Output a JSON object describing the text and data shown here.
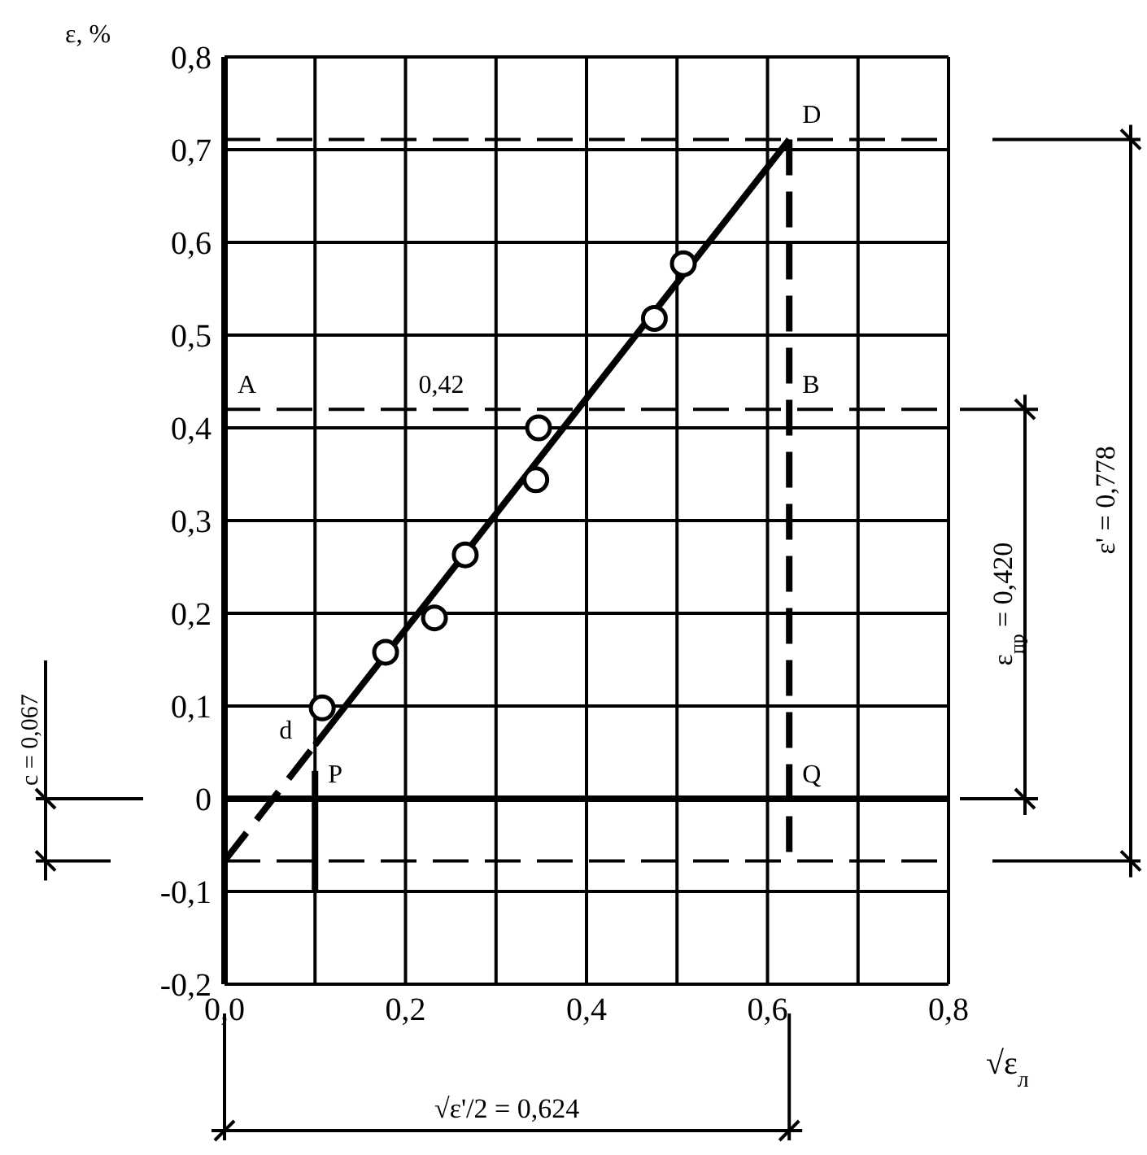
{
  "chart_data": {
    "type": "scatter",
    "xlabel": "√ε$_{л}$",
    "ylabel": "ε, %",
    "xlim": [
      0,
      0.8
    ],
    "ylim": [
      -0.2,
      0.8
    ],
    "xticks": [
      {
        "value": 0,
        "label": "0,0"
      },
      {
        "value": 0.1,
        "label": null
      },
      {
        "value": 0.2,
        "label": "0,2"
      },
      {
        "value": 0.3,
        "label": null
      },
      {
        "value": 0.4,
        "label": "0,4"
      },
      {
        "value": 0.5,
        "label": null
      },
      {
        "value": 0.6,
        "label": "0,6"
      },
      {
        "value": 0.7,
        "label": null
      },
      {
        "value": 0.8,
        "label": "0,8"
      }
    ],
    "yticks": [
      {
        "value": -0.2,
        "label": "-0,2"
      },
      {
        "value": -0.1,
        "label": "-0,1"
      },
      {
        "value": 0,
        "label": "0"
      },
      {
        "value": 0.1,
        "label": "0,1"
      },
      {
        "value": 0.2,
        "label": "0,2"
      },
      {
        "value": 0.3,
        "label": "0,3"
      },
      {
        "value": 0.4,
        "label": "0,4"
      },
      {
        "value": 0.5,
        "label": "0,5"
      },
      {
        "value": 0.6,
        "label": "0,6"
      },
      {
        "value": 0.7,
        "label": "0,7"
      },
      {
        "value": 0.8,
        "label": "0,8"
      }
    ],
    "grid": true,
    "series": [
      {
        "color": "#000000",
        "marker": "circle",
        "x": [
          0.108,
          0.178,
          0.232,
          0.266,
          0.344,
          0.347,
          0.475,
          0.507
        ],
        "values": [
          0.098,
          0.158,
          0.195,
          0.263,
          0.344,
          0.4,
          0.518,
          0.577
        ]
      },
      {
        "type": "line",
        "color": "#000000",
        "marker": "none",
        "line_style": "solid",
        "x": [
          0.1,
          0.624
        ],
        "values": [
          0.058,
          0.711
        ]
      },
      {
        "type": "line",
        "color": "#000000",
        "marker": "none",
        "line_style": "dashed",
        "x": [
          0,
          0.1
        ],
        "values": [
          -0.067,
          0.058
        ]
      },
      {
        "type": "line",
        "color": "#000000",
        "marker": "none",
        "line_style": "dashed",
        "x": [
          0.624,
          0.624
        ],
        "values": [
          0.711,
          -0.067
        ]
      },
      {
        "type": "line",
        "color": "#000000",
        "marker": "none",
        "line_style": "solid",
        "x": [
          0.1,
          0.1
        ],
        "values": [
          -0.1,
          0.03
        ]
      }
    ],
    "ref_lines": [
      {
        "axis": "y",
        "value": 0.711,
        "color": "#000000",
        "line_style": "dashed"
      },
      {
        "axis": "y",
        "value": 0.42,
        "color": "#000000",
        "line_style": "dashed"
      },
      {
        "axis": "y",
        "value": -0.067,
        "color": "#000000",
        "line_style": "dashed"
      },
      {
        "axis": "y",
        "value": 0,
        "color": "#000000",
        "line_style": "solid"
      }
    ],
    "annotations": [
      {
        "text": "A",
        "x": 0,
        "y": 0.42
      },
      {
        "text": "0,42",
        "x": 0.2,
        "y": 0.42
      },
      {
        "text": "B",
        "x": 0.624,
        "y": 0.42
      },
      {
        "text": "D",
        "x": 0.624,
        "y": 0.711
      },
      {
        "text": "Q",
        "x": 0.624,
        "y": 0
      },
      {
        "text": "P",
        "x": 0.1,
        "y": 0
      },
      {
        "text": "d",
        "x": 0.1,
        "y": 0.058
      },
      "c = 0,067",
      "ε$_{пр}$ = 0,420",
      "ε' = 0,778",
      "√ε'/2 = 0,624"
    ]
  }
}
